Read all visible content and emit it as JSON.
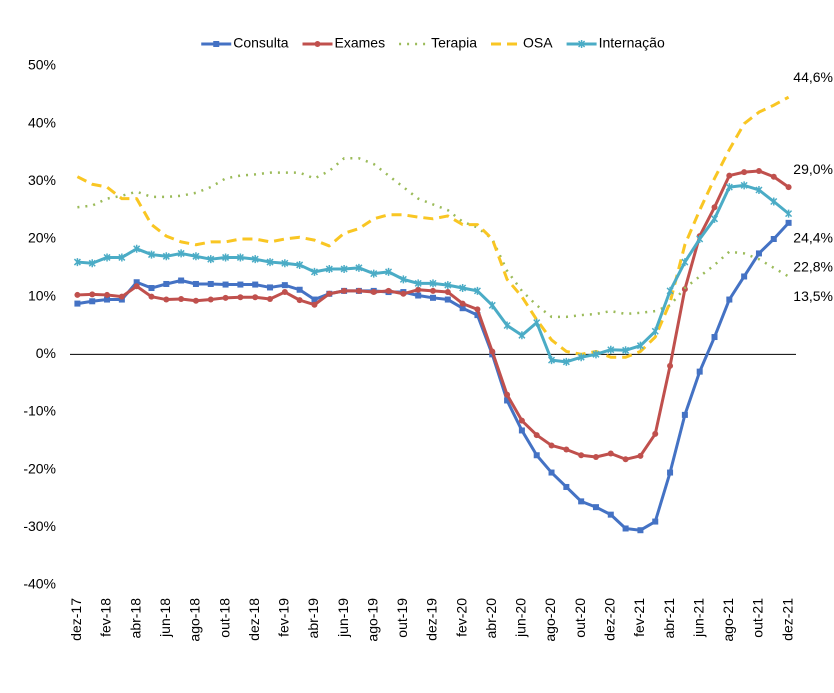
{
  "chart_data": {
    "type": "line",
    "categories": [
      "dez-17",
      null,
      "fev-18",
      null,
      "abr-18",
      null,
      "jun-18",
      null,
      "ago-18",
      null,
      "out-18",
      null,
      "dez-18",
      null,
      "fev-19",
      null,
      "abr-19",
      null,
      "jun-19",
      null,
      "ago-19",
      null,
      "out-19",
      null,
      "dez-19",
      null,
      "fev-20",
      null,
      "abr-20",
      null,
      "jun-20",
      null,
      "ago-20",
      null,
      "out-20",
      null,
      "dez-20",
      null,
      "fev-21",
      null,
      "abr-21",
      null,
      "jun-21",
      null,
      "ago-21",
      null,
      "out-21",
      null,
      "dez-21"
    ],
    "series": [
      {
        "name": "Consulta",
        "color": "#4472c4",
        "marker": "square",
        "dash": "solid",
        "values": [
          8.8,
          9.2,
          9.5,
          9.5,
          12.5,
          11.5,
          12.2,
          12.8,
          12.2,
          12.2,
          12.1,
          12.1,
          12.1,
          11.6,
          12.0,
          11.2,
          9.5,
          10.5,
          11.0,
          11.0,
          11.0,
          10.8,
          10.8,
          10.2,
          9.8,
          9.5,
          8.0,
          6.8,
          0.0,
          -8.0,
          -13.2,
          -17.5,
          -20.5,
          -23.0,
          -25.5,
          -26.5,
          -27.8,
          -30.2,
          -30.5,
          -29.0,
          -20.5,
          -10.5,
          -3.0,
          3.0,
          9.5,
          13.5,
          17.5,
          20.0,
          22.8
        ],
        "value_labels": [
          null,
          null,
          null,
          null,
          null,
          null,
          null,
          null,
          null,
          null,
          null,
          null,
          null,
          null,
          null,
          null,
          null,
          null,
          null,
          null,
          null,
          null,
          null,
          null,
          null,
          null,
          null,
          null,
          null,
          null,
          null,
          null,
          null,
          null,
          null,
          null,
          null,
          null,
          null,
          null,
          null,
          null,
          null,
          null,
          null,
          null,
          null,
          null,
          "22,8%"
        ]
      },
      {
        "name": "Exames",
        "color": "#c0504d",
        "marker": "circle",
        "dash": "solid",
        "values": [
          10.3,
          10.4,
          10.3,
          10.0,
          11.8,
          10.0,
          9.5,
          9.6,
          9.3,
          9.5,
          9.8,
          9.9,
          9.9,
          9.6,
          10.8,
          9.4,
          8.6,
          10.5,
          11.0,
          11.0,
          10.8,
          11.0,
          10.5,
          11.2,
          11.0,
          10.8,
          8.8,
          7.8,
          0.5,
          -7.0,
          -11.5,
          -14.0,
          -15.8,
          -16.5,
          -17.5,
          -17.8,
          -17.2,
          -18.2,
          -17.6,
          -13.8,
          -2.0,
          11.3,
          20.5,
          25.5,
          31.0,
          31.6,
          31.8,
          30.8,
          29.0
        ],
        "value_labels": [
          null,
          null,
          null,
          null,
          null,
          null,
          null,
          null,
          null,
          null,
          null,
          null,
          null,
          null,
          null,
          null,
          null,
          null,
          null,
          null,
          null,
          null,
          null,
          null,
          null,
          null,
          null,
          null,
          null,
          null,
          null,
          null,
          null,
          null,
          null,
          null,
          null,
          null,
          null,
          null,
          null,
          null,
          null,
          null,
          null,
          null,
          null,
          null,
          "29,0%"
        ]
      },
      {
        "name": "Terapia",
        "color": "#9bbb59",
        "marker": null,
        "dash": "dotted",
        "values": [
          25.5,
          25.8,
          27.0,
          27.5,
          28.2,
          27.3,
          27.3,
          27.5,
          28.0,
          29.0,
          30.5,
          31.0,
          31.2,
          31.5,
          31.5,
          31.5,
          30.5,
          31.8,
          34.0,
          34.0,
          33.0,
          31.0,
          29.0,
          27.0,
          26.0,
          25.0,
          23.0,
          22.0,
          20.0,
          14.5,
          11.0,
          8.5,
          6.5,
          6.5,
          6.8,
          7.0,
          7.5,
          7.0,
          7.2,
          7.5,
          8.5,
          11.5,
          13.5,
          15.5,
          17.8,
          17.5,
          16.5,
          15.0,
          13.5
        ],
        "value_labels": [
          null,
          null,
          null,
          null,
          null,
          null,
          null,
          null,
          null,
          null,
          null,
          null,
          null,
          null,
          null,
          null,
          null,
          null,
          null,
          null,
          null,
          null,
          null,
          null,
          null,
          null,
          null,
          null,
          null,
          null,
          null,
          null,
          null,
          null,
          null,
          null,
          null,
          null,
          null,
          null,
          null,
          null,
          null,
          null,
          null,
          null,
          null,
          null,
          "13,5%"
        ]
      },
      {
        "name": "OSA",
        "color": "#f9c623",
        "marker": null,
        "dash": "dashed",
        "values": [
          30.8,
          29.5,
          29.0,
          27.0,
          27.0,
          22.5,
          20.5,
          19.5,
          19.0,
          19.5,
          19.5,
          20.0,
          20.0,
          19.5,
          20.0,
          20.3,
          19.8,
          18.8,
          21.0,
          21.8,
          23.5,
          24.2,
          24.2,
          23.8,
          23.5,
          24.0,
          22.5,
          22.5,
          20.0,
          13.0,
          10.0,
          6.0,
          2.5,
          0.5,
          0.0,
          0.5,
          -0.5,
          -0.5,
          0.5,
          3.0,
          9.0,
          19.0,
          25.0,
          30.5,
          35.5,
          40.0,
          42.0,
          43.2,
          44.6
        ],
        "value_labels": [
          null,
          null,
          null,
          null,
          null,
          null,
          null,
          null,
          null,
          null,
          null,
          null,
          null,
          null,
          null,
          null,
          null,
          null,
          null,
          null,
          null,
          null,
          null,
          null,
          null,
          null,
          null,
          null,
          null,
          null,
          null,
          null,
          null,
          null,
          null,
          null,
          null,
          null,
          null,
          null,
          null,
          null,
          null,
          null,
          null,
          null,
          null,
          null,
          "44,6%"
        ]
      },
      {
        "name": "Internação",
        "color": "#4bacc6",
        "marker": "x",
        "dash": "solid",
        "values": [
          16.0,
          15.8,
          16.8,
          16.8,
          18.3,
          17.3,
          17.0,
          17.5,
          17.0,
          16.5,
          16.8,
          16.8,
          16.5,
          16.0,
          15.8,
          15.5,
          14.3,
          14.8,
          14.8,
          15.0,
          14.0,
          14.3,
          13.0,
          12.3,
          12.3,
          12.0,
          11.5,
          11.0,
          8.5,
          5.0,
          3.3,
          5.5,
          -1.0,
          -1.3,
          -0.5,
          0.0,
          0.8,
          0.7,
          1.5,
          4.0,
          11.0,
          16.0,
          20.0,
          23.5,
          29.0,
          29.3,
          28.5,
          26.5,
          24.4
        ],
        "value_labels": [
          null,
          null,
          null,
          null,
          null,
          null,
          null,
          null,
          null,
          null,
          null,
          null,
          null,
          null,
          null,
          null,
          null,
          null,
          null,
          null,
          null,
          null,
          null,
          null,
          null,
          null,
          null,
          null,
          null,
          null,
          null,
          null,
          null,
          null,
          null,
          null,
          null,
          null,
          null,
          null,
          null,
          null,
          null,
          null,
          null,
          null,
          null,
          null,
          "24,4%"
        ]
      }
    ],
    "ylim": [
      -40,
      50
    ],
    "yticks": [
      {
        "value": -40,
        "label": "-40%"
      },
      {
        "value": -30,
        "label": "-30%"
      },
      {
        "value": -20,
        "label": "-20%"
      },
      {
        "value": -10,
        "label": "-10%"
      },
      {
        "value": 0,
        "label": "0%"
      },
      {
        "value": 10,
        "label": "10%"
      },
      {
        "value": 20,
        "label": "20%"
      },
      {
        "value": 30,
        "label": "30%"
      },
      {
        "value": 40,
        "label": "40%"
      },
      {
        "value": 50,
        "label": "50%"
      }
    ],
    "grid": false,
    "legend": "top"
  }
}
